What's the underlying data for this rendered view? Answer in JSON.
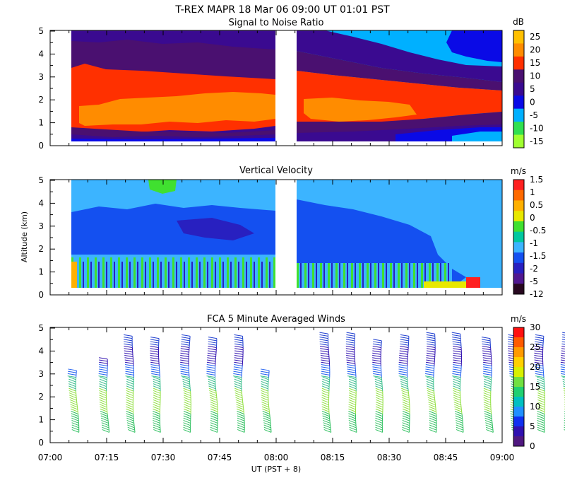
{
  "header": {
    "title": "T-REX   MAPR 18 Mar 06   09:00 UT  01:01  PST"
  },
  "chart_data": [
    {
      "type": "heatmap",
      "title": "Signal to Noise Ratio",
      "ylabel": "",
      "ylim": [
        0,
        5
      ],
      "y_ticks": [
        "0",
        "1",
        "2",
        "3",
        "4",
        "5"
      ],
      "colorbar": {
        "unit": "dB",
        "labels": [
          "25",
          "20",
          "15",
          "10",
          "5",
          "0",
          "-5",
          "-10",
          "-15"
        ],
        "colors": [
          "#FFC000",
          "#FF8C00",
          "#FF3000",
          "#4A1070",
          "#3A0A90",
          "#0A0AE6",
          "#00B0FF",
          "#30E050",
          "#A0FF30"
        ]
      },
      "layers": [
        {
          "name": "low-gradient",
          "y_range": [
            0.4,
            1.1
          ],
          "value_dB": -5
        },
        {
          "name": "strong-core",
          "y_range": [
            1.1,
            2.6
          ],
          "value_dB": 20
        },
        {
          "name": "core",
          "y_range": [
            0.9,
            3.5
          ],
          "value_dB": 15
        },
        {
          "name": "upper",
          "y_range": [
            3.5,
            4.3
          ],
          "value_dB": 10
        },
        {
          "name": "top",
          "y_range": [
            4.3,
            5.0
          ],
          "value_dB": 5
        }
      ],
      "gap_utc": [
        "07:59",
        "08:05"
      ]
    },
    {
      "type": "heatmap",
      "title": "Vertical Velocity",
      "ylabel": "Altitude (km)",
      "ylim": [
        0,
        5
      ],
      "y_ticks": [
        "0",
        "1",
        "2",
        "3",
        "4",
        "5"
      ],
      "colorbar": {
        "unit": "m/s",
        "labels": [
          "1.5",
          "1",
          "0.5",
          "0",
          "-0.5",
          "-1",
          "-1.5",
          "-2",
          "-5",
          "-12"
        ],
        "colors": [
          "#FF2020",
          "#FF6A00",
          "#FFB000",
          "#E8E800",
          "#40E030",
          "#00C8A0",
          "#3CB4FF",
          "#1450F0",
          "#2820C0",
          "#501890",
          "#280820"
        ]
      },
      "layers": [
        {
          "name": "upper",
          "y_range": [
            3.5,
            5.0
          ],
          "value_ms": -1
        },
        {
          "name": "middle",
          "y_range": [
            0.4,
            3.5
          ],
          "value_ms": -1.5
        }
      ],
      "gap_utc": [
        "07:59",
        "08:05"
      ]
    },
    {
      "type": "scatter",
      "title": "FCA 5 Minute Averaged Winds",
      "ylabel": "",
      "xlabel": "UT  (PST + 8)",
      "xlim": [
        "07:00",
        "09:00"
      ],
      "x_ticks": [
        "07:00",
        "07:15",
        "07:30",
        "07:45",
        "08:00",
        "08:15",
        "08:30",
        "08:45",
        "09:00"
      ],
      "ylim": [
        0,
        5
      ],
      "y_ticks": [
        "0",
        "1",
        "2",
        "3",
        "4",
        "5"
      ],
      "colorbar": {
        "unit": "m/s",
        "labels": [
          "30",
          "25",
          "20",
          "15",
          "10",
          "5",
          "0"
        ],
        "colors": [
          "#FF1010",
          "#FF5A00",
          "#FF9A00",
          "#FFD000",
          "#D8F000",
          "#70E040",
          "#20D070",
          "#00C0C0",
          "#2090FF",
          "#1030F0",
          "#3010B0",
          "#501880"
        ]
      },
      "profile_times_min": [
        7,
        15,
        22,
        29,
        37,
        44,
        51,
        58,
        74,
        81,
        88,
        95,
        102,
        109,
        117,
        124,
        131,
        138
      ],
      "profile_top_km": [
        3.2,
        3.7,
        4.7,
        4.6,
        4.7,
        4.6,
        4.7,
        3.2,
        4.8,
        4.8,
        4.5,
        4.7,
        4.8,
        4.8,
        4.6,
        4.7,
        4.7,
        4.8
      ]
    }
  ]
}
